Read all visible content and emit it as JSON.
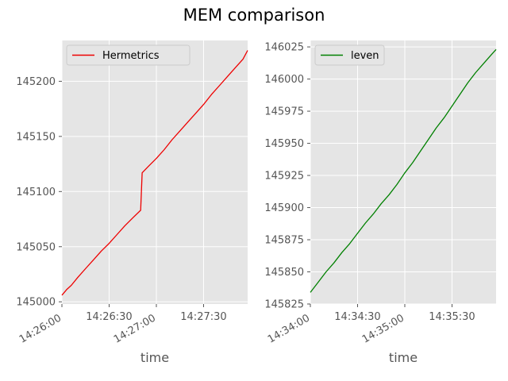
{
  "chart_data": {
    "title": "MEM comparison",
    "subplots": [
      {
        "type": "line",
        "xlabel": "time",
        "ylabel": "",
        "legend_position": "upper-left",
        "grid": true,
        "xlim": [
          "14:26:00",
          "14:27:58"
        ],
        "ylim": [
          144998,
          145237
        ],
        "xticks": [
          "14:26:00",
          "14:26:30",
          "14:27:00",
          "14:27:30"
        ],
        "xticks_rotated": [
          true,
          false,
          true,
          false
        ],
        "yticks": [
          145000,
          145050,
          145100,
          145150,
          145200
        ],
        "series": [
          {
            "name": "Hermetrics",
            "color": "#ee0000",
            "x": [
              "14:26:00",
              "14:26:03",
              "14:26:06",
              "14:26:10",
              "14:26:15",
              "14:26:20",
              "14:26:25",
              "14:26:30",
              "14:26:35",
              "14:26:40",
              "14:26:45",
              "14:26:50",
              "14:26:51",
              "14:26:55",
              "14:27:00",
              "14:27:05",
              "14:27:10",
              "14:27:15",
              "14:27:20",
              "14:27:25",
              "14:27:30",
              "14:27:35",
              "14:27:40",
              "14:27:45",
              "14:27:50",
              "14:27:55",
              "14:27:58"
            ],
            "y": [
              145006,
              145011,
              145015,
              145022,
              145030,
              145038,
              145046,
              145053,
              145061,
              145069,
              145076,
              145083,
              145117,
              145123,
              145130,
              145138,
              145147,
              145155,
              145163,
              145171,
              145179,
              145188,
              145196,
              145204,
              145212,
              145220,
              145228
            ]
          }
        ]
      },
      {
        "type": "line",
        "xlabel": "time",
        "ylabel": "",
        "legend_position": "upper-left",
        "grid": true,
        "xlim": [
          "14:34:00",
          "14:35:58"
        ],
        "ylim": [
          145825,
          146030
        ],
        "xticks": [
          "14:34:00",
          "14:34:30",
          "14:35:00",
          "14:35:30"
        ],
        "xticks_rotated": [
          true,
          false,
          true,
          false
        ],
        "yticks": [
          145825,
          145850,
          145875,
          145900,
          145925,
          145950,
          145975,
          146000,
          146025
        ],
        "series": [
          {
            "name": "leven",
            "color": "#008000",
            "x": [
              "14:34:00",
              "14:34:05",
              "14:34:10",
              "14:34:15",
              "14:34:20",
              "14:34:25",
              "14:34:30",
              "14:34:35",
              "14:34:40",
              "14:34:45",
              "14:34:50",
              "14:34:55",
              "14:35:00",
              "14:35:05",
              "14:35:10",
              "14:35:15",
              "14:35:20",
              "14:35:25",
              "14:35:30",
              "14:35:35",
              "14:35:40",
              "14:35:45",
              "14:35:50",
              "14:35:55",
              "14:35:58"
            ],
            "y": [
              145834,
              145842,
              145850,
              145857,
              145865,
              145872,
              145880,
              145888,
              145895,
              145903,
              145910,
              145918,
              145927,
              145935,
              145944,
              145953,
              145962,
              145970,
              145979,
              145988,
              145997,
              146005,
              146012,
              146019,
              146023
            ]
          }
        ]
      }
    ]
  },
  "colors": {
    "plot_background": "#e5e5e5",
    "grid": "#ffffff",
    "tick_text": "#555555"
  }
}
